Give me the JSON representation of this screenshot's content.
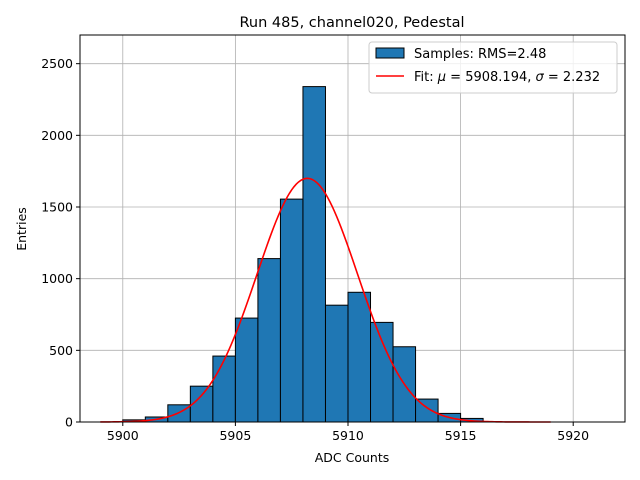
{
  "chart_data": {
    "type": "bar",
    "title": "Run 485, channel020, Pedestal",
    "xlabel": "ADC Counts",
    "ylabel": "Entries",
    "xlim": [
      5898.1,
      5922.3
    ],
    "ylim": [
      0,
      2700
    ],
    "grid": true,
    "legend_position": "top-right",
    "bin_width": 1,
    "histogram": {
      "name": "Samples: RMS=2.48",
      "color": "#1f77b4",
      "edge_color": "#000000",
      "bins": [
        {
          "x": 5900,
          "count": 15
        },
        {
          "x": 5901,
          "count": 35
        },
        {
          "x": 5902,
          "count": 120
        },
        {
          "x": 5903,
          "count": 250
        },
        {
          "x": 5904,
          "count": 460
        },
        {
          "x": 5905,
          "count": 725
        },
        {
          "x": 5906,
          "count": 1140
        },
        {
          "x": 5907,
          "count": 1555
        },
        {
          "x": 5908,
          "count": 2340
        },
        {
          "x": 5909,
          "count": 815
        },
        {
          "x": 5910,
          "count": 905
        },
        {
          "x": 5911,
          "count": 695
        },
        {
          "x": 5912,
          "count": 525
        },
        {
          "x": 5913,
          "count": 160
        },
        {
          "x": 5914,
          "count": 60
        },
        {
          "x": 5915,
          "count": 25
        }
      ]
    },
    "fit": {
      "name_prefix": "Fit: ",
      "mu_symbol": "μ",
      "mu_text": " = 5908.194, ",
      "sigma_symbol": "σ",
      "sigma_text": " = 2.232",
      "mu": 5908.194,
      "sigma": 2.232,
      "amplitude": 1700,
      "x_range": [
        5899,
        5919
      ],
      "color": "#ff0000"
    },
    "x_ticks": [
      {
        "value": 5900,
        "label": "5900"
      },
      {
        "value": 5905,
        "label": "5905"
      },
      {
        "value": 5910,
        "label": "5910"
      },
      {
        "value": 5915,
        "label": "5915"
      },
      {
        "value": 5920,
        "label": "5920"
      }
    ],
    "y_ticks": [
      {
        "value": 0,
        "label": "0"
      },
      {
        "value": 500,
        "label": "500"
      },
      {
        "value": 1000,
        "label": "1000"
      },
      {
        "value": 1500,
        "label": "1500"
      },
      {
        "value": 2000,
        "label": "2000"
      },
      {
        "value": 2500,
        "label": "2500"
      }
    ]
  }
}
